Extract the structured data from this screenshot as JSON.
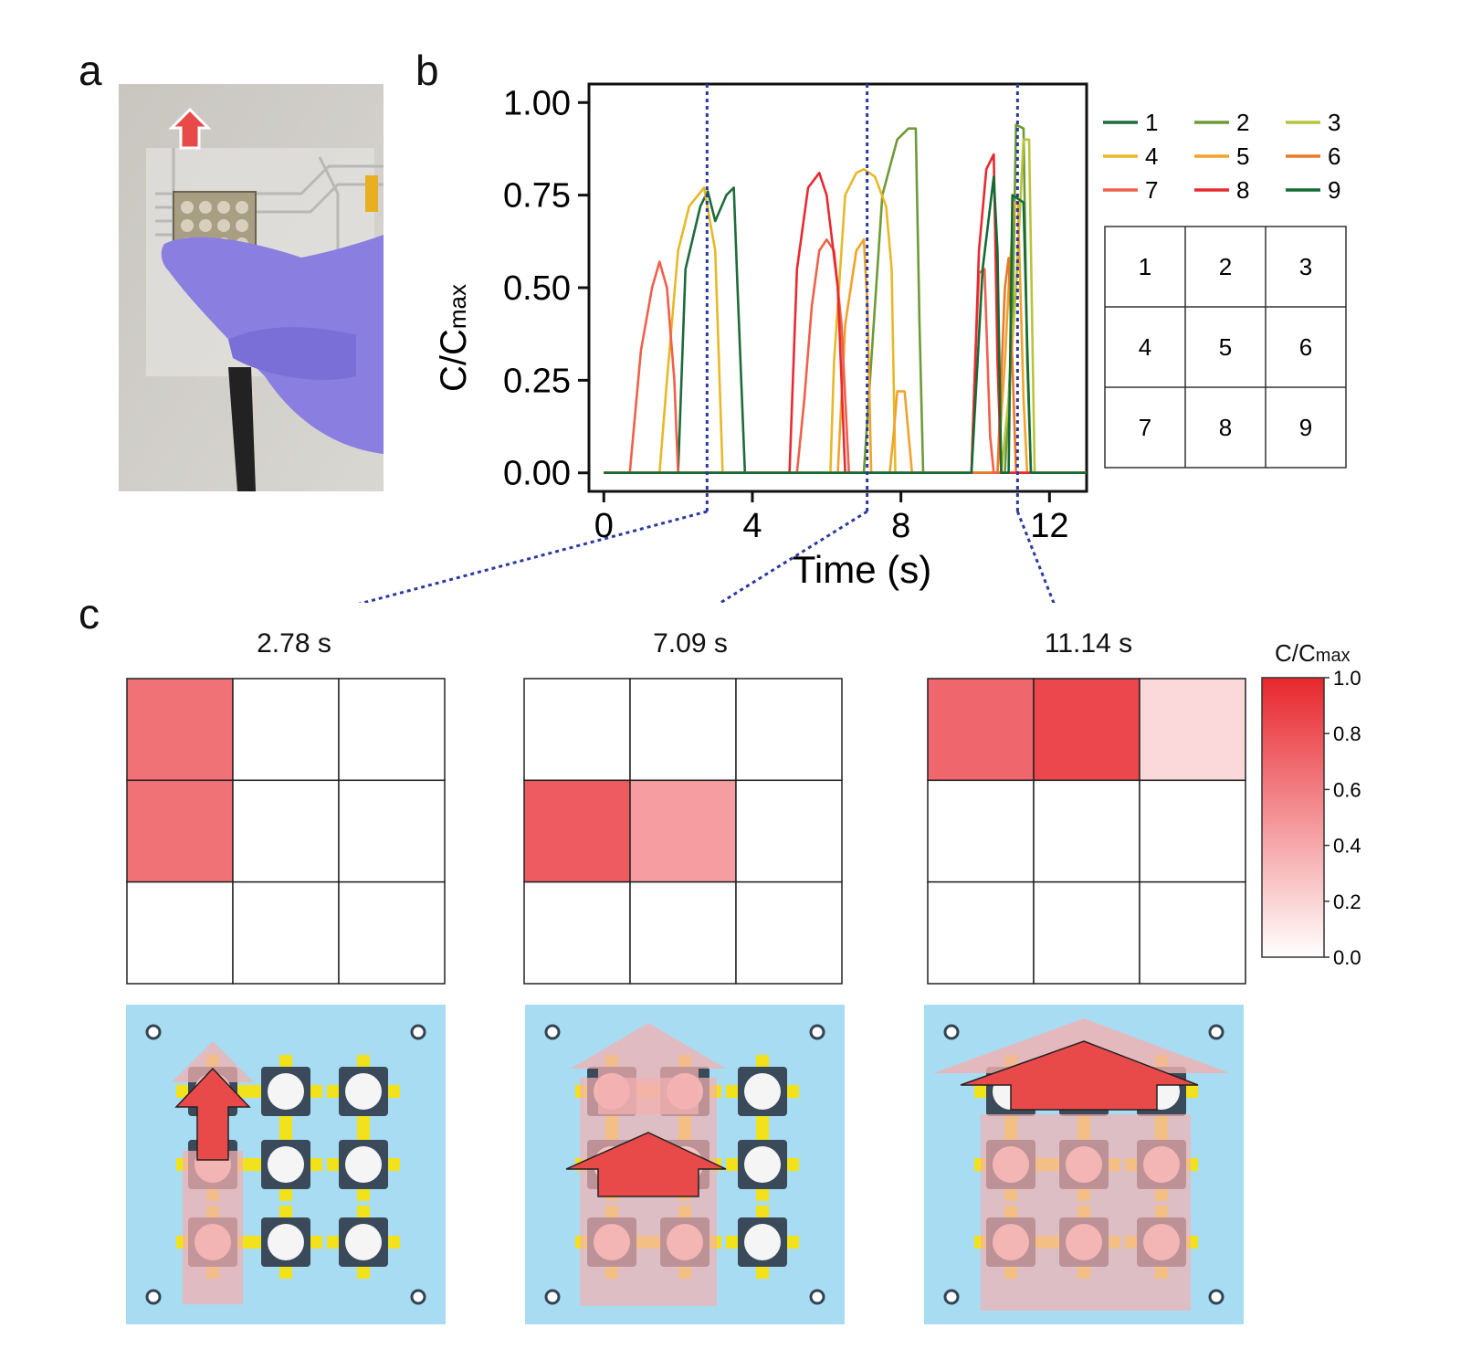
{
  "panels": {
    "a": "a",
    "b": "b",
    "c": "c"
  },
  "chart_data": {
    "type": "line",
    "xlabel": "Time (s)",
    "ylabel_main": "C/C",
    "ylabel_sub": "max",
    "xlim": [
      -0.4,
      13
    ],
    "ylim": [
      -0.05,
      1.05
    ],
    "xticks": [
      "0",
      "4",
      "8",
      "12"
    ],
    "xtick_values": [
      0,
      4,
      8,
      12
    ],
    "yticks": [
      "0.00",
      "0.25",
      "0.50",
      "0.75",
      "1.00"
    ],
    "ytick_values": [
      0,
      0.25,
      0.5,
      0.75,
      1.0
    ],
    "markers_x": [
      2.78,
      7.09,
      11.14
    ],
    "series": [
      {
        "name": "1",
        "color": "#1d6b3a",
        "points": [
          [
            0,
            0
          ],
          [
            2.0,
            0
          ],
          [
            2.2,
            0.55
          ],
          [
            2.6,
            0.72
          ],
          [
            2.8,
            0.76
          ],
          [
            3.0,
            0.68
          ],
          [
            3.3,
            0.75
          ],
          [
            3.5,
            0.77
          ],
          [
            3.6,
            0.5
          ],
          [
            3.8,
            0
          ],
          [
            13,
            0
          ]
        ]
      },
      {
        "name": "2",
        "color": "#6e9a36",
        "points": [
          [
            0,
            0
          ],
          [
            7.0,
            0
          ],
          [
            7.2,
            0.3
          ],
          [
            7.5,
            0.75
          ],
          [
            7.9,
            0.9
          ],
          [
            8.2,
            0.93
          ],
          [
            8.4,
            0.93
          ],
          [
            8.5,
            0.4
          ],
          [
            8.6,
            0
          ],
          [
            10.8,
            0
          ],
          [
            11.0,
            0.4
          ],
          [
            11.1,
            0.94
          ],
          [
            11.3,
            0.93
          ],
          [
            11.4,
            0.3
          ],
          [
            11.5,
            0
          ],
          [
            13,
            0
          ]
        ]
      },
      {
        "name": "3",
        "color": "#b8c43a",
        "points": [
          [
            0,
            0
          ],
          [
            10.7,
            0
          ],
          [
            10.9,
            0.2
          ],
          [
            11.1,
            0.5
          ],
          [
            11.3,
            0.9
          ],
          [
            11.45,
            0.9
          ],
          [
            11.6,
            0
          ],
          [
            13,
            0
          ]
        ]
      },
      {
        "name": "4",
        "color": "#e8b828",
        "points": [
          [
            0,
            0
          ],
          [
            1.5,
            0
          ],
          [
            1.7,
            0.25
          ],
          [
            2.0,
            0.6
          ],
          [
            2.3,
            0.72
          ],
          [
            2.7,
            0.77
          ],
          [
            3.0,
            0.6
          ],
          [
            3.2,
            0
          ],
          [
            6.1,
            0
          ],
          [
            6.2,
            0.3
          ],
          [
            6.5,
            0.75
          ],
          [
            6.8,
            0.81
          ],
          [
            7.0,
            0.82
          ],
          [
            7.3,
            0.8
          ],
          [
            7.6,
            0.72
          ],
          [
            7.75,
            0.55
          ],
          [
            7.85,
            0
          ],
          [
            13,
            0
          ]
        ]
      },
      {
        "name": "5",
        "color": "#f0a32c",
        "points": [
          [
            0,
            0
          ],
          [
            6.3,
            0
          ],
          [
            6.5,
            0.4
          ],
          [
            6.8,
            0.6
          ],
          [
            7.0,
            0.63
          ],
          [
            7.1,
            0.45
          ],
          [
            7.2,
            0
          ],
          [
            7.7,
            0
          ],
          [
            7.8,
            0.1
          ],
          [
            7.9,
            0.22
          ],
          [
            8.1,
            0.22
          ],
          [
            8.3,
            0
          ],
          [
            10.6,
            0
          ],
          [
            10.8,
            0.3
          ],
          [
            10.9,
            0.5
          ],
          [
            11.05,
            0.73
          ],
          [
            11.15,
            0.73
          ],
          [
            11.3,
            0.2
          ],
          [
            11.4,
            0
          ],
          [
            13,
            0
          ]
        ]
      },
      {
        "name": "6",
        "color": "#e87a2a",
        "points": [
          [
            0,
            0
          ],
          [
            10.6,
            0
          ],
          [
            10.8,
            0.5
          ],
          [
            10.9,
            0.58
          ],
          [
            11.0,
            0.3
          ],
          [
            11.1,
            0
          ],
          [
            13,
            0
          ]
        ]
      },
      {
        "name": "7",
        "color": "#f0604a",
        "points": [
          [
            0,
            0
          ],
          [
            0.7,
            0
          ],
          [
            1.0,
            0.33
          ],
          [
            1.3,
            0.5
          ],
          [
            1.5,
            0.57
          ],
          [
            1.7,
            0.5
          ],
          [
            1.9,
            0.25
          ],
          [
            2.0,
            0
          ],
          [
            5.2,
            0
          ],
          [
            5.4,
            0.2
          ],
          [
            5.6,
            0.45
          ],
          [
            5.8,
            0.6
          ],
          [
            6.0,
            0.63
          ],
          [
            6.2,
            0.6
          ],
          [
            6.4,
            0.4
          ],
          [
            6.6,
            0
          ],
          [
            9.9,
            0
          ],
          [
            10.0,
            0.3
          ],
          [
            10.1,
            0.54
          ],
          [
            10.25,
            0.55
          ],
          [
            10.4,
            0.1
          ],
          [
            10.5,
            0
          ],
          [
            13,
            0
          ]
        ]
      },
      {
        "name": "8",
        "color": "#e82a30",
        "points": [
          [
            0,
            0
          ],
          [
            5.0,
            0
          ],
          [
            5.2,
            0.55
          ],
          [
            5.5,
            0.77
          ],
          [
            5.8,
            0.81
          ],
          [
            6.0,
            0.75
          ],
          [
            6.3,
            0.5
          ],
          [
            6.5,
            0
          ],
          [
            9.9,
            0
          ],
          [
            10.1,
            0.6
          ],
          [
            10.3,
            0.82
          ],
          [
            10.5,
            0.86
          ],
          [
            10.6,
            0.3
          ],
          [
            10.7,
            0
          ],
          [
            13,
            0
          ]
        ]
      },
      {
        "name": "9",
        "color": "#136b35",
        "points": [
          [
            0,
            0
          ],
          [
            9.9,
            0
          ],
          [
            10.2,
            0.55
          ],
          [
            10.5,
            0.8
          ],
          [
            10.6,
            0.6
          ],
          [
            10.7,
            0
          ],
          [
            10.9,
            0
          ],
          [
            11.0,
            0.75
          ],
          [
            11.3,
            0.73
          ],
          [
            11.4,
            0.35
          ],
          [
            11.5,
            0
          ],
          [
            13,
            0
          ]
        ]
      }
    ]
  },
  "legend": [
    {
      "label": "1",
      "color": "#1d6b3a"
    },
    {
      "label": "2",
      "color": "#6e9a36"
    },
    {
      "label": "3",
      "color": "#b8c43a"
    },
    {
      "label": "4",
      "color": "#e8b828"
    },
    {
      "label": "5",
      "color": "#f0a32c"
    },
    {
      "label": "6",
      "color": "#e87a2a"
    },
    {
      "label": "7",
      "color": "#f0604a"
    },
    {
      "label": "8",
      "color": "#e82a30"
    },
    {
      "label": "9",
      "color": "#136b35"
    }
  ],
  "layout_grid": [
    "1",
    "2",
    "3",
    "4",
    "5",
    "6",
    "7",
    "8",
    "9"
  ],
  "snapshots": [
    {
      "time": "2.78 s",
      "values": [
        0.65,
        0,
        0,
        0.65,
        0,
        0,
        0,
        0,
        0
      ]
    },
    {
      "time": "7.09 s",
      "values": [
        0,
        0,
        0,
        0.75,
        0.45,
        0,
        0,
        0,
        0
      ]
    },
    {
      "time": "11.14 s",
      "values": [
        0.7,
        0.85,
        0.18,
        0,
        0,
        0,
        0,
        0,
        0
      ]
    }
  ],
  "colorbar": {
    "title_main": "C/C",
    "title_sub": "max",
    "ticks": [
      "1.0",
      "0.8",
      "0.6",
      "0.4",
      "0.2",
      "0.0"
    ],
    "high_color": "#e8262d",
    "low_color": "#ffffff"
  },
  "colors": {
    "marker_line": "#2b3aa0",
    "schematic_bg": "#a8dcf2",
    "arrow": "#e84a4a",
    "pad": "#f2e21c",
    "glove": "#8a7fe0"
  }
}
